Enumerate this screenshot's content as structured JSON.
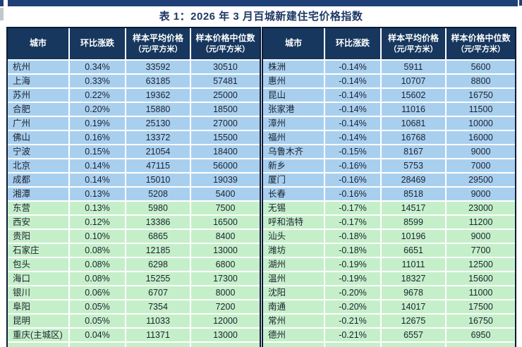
{
  "title": "表 1：2026 年 3 月百城新建住宅价格指数",
  "colors": {
    "accent_bar": "#1F4077",
    "title_color": "#1F3864",
    "header_bg": "#17375E",
    "blue_row": "#A9CFEF",
    "green_row": "#C5EFC9"
  },
  "columns": [
    {
      "key": "city",
      "label": "城市",
      "sub": ""
    },
    {
      "key": "change",
      "label": "环比涨跌",
      "sub": ""
    },
    {
      "key": "avg",
      "label": "样本平均价格",
      "sub": "（元/平方米）"
    },
    {
      "key": "median",
      "label": "样本价格中位数",
      "sub": "（元/平方米）"
    }
  ],
  "green_start_index": 10,
  "tables": {
    "left": {
      "rows": [
        {
          "city": "杭州",
          "change": "0.34%",
          "avg": "33592",
          "median": "30510"
        },
        {
          "city": "上海",
          "change": "0.33%",
          "avg": "63185",
          "median": "57481"
        },
        {
          "city": "苏州",
          "change": "0.22%",
          "avg": "19362",
          "median": "25000"
        },
        {
          "city": "合肥",
          "change": "0.20%",
          "avg": "15880",
          "median": "18500"
        },
        {
          "city": "广州",
          "change": "0.19%",
          "avg": "25130",
          "median": "27000"
        },
        {
          "city": "佛山",
          "change": "0.16%",
          "avg": "13372",
          "median": "15500"
        },
        {
          "city": "宁波",
          "change": "0.15%",
          "avg": "21054",
          "median": "18400"
        },
        {
          "city": "北京",
          "change": "0.14%",
          "avg": "47115",
          "median": "56000"
        },
        {
          "city": "成都",
          "change": "0.14%",
          "avg": "15010",
          "median": "19039"
        },
        {
          "city": "湘潭",
          "change": "0.13%",
          "avg": "5208",
          "median": "5400"
        },
        {
          "city": "东营",
          "change": "0.13%",
          "avg": "5980",
          "median": "7500"
        },
        {
          "city": "西安",
          "change": "0.12%",
          "avg": "13386",
          "median": "16500"
        },
        {
          "city": "贵阳",
          "change": "0.10%",
          "avg": "6865",
          "median": "8400"
        },
        {
          "city": "石家庄",
          "change": "0.08%",
          "avg": "12185",
          "median": "13000"
        },
        {
          "city": "包头",
          "change": "0.08%",
          "avg": "6298",
          "median": "6800"
        },
        {
          "city": "海口",
          "change": "0.08%",
          "avg": "15255",
          "median": "17300"
        },
        {
          "city": "银川",
          "change": "0.06%",
          "avg": "6707",
          "median": "8000"
        },
        {
          "city": "阜阳",
          "change": "0.05%",
          "avg": "7354",
          "median": "7200"
        },
        {
          "city": "昆明",
          "change": "0.05%",
          "avg": "11033",
          "median": "12000"
        },
        {
          "city": "重庆(主城区)",
          "change": "0.04%",
          "avg": "11371",
          "median": "13000"
        }
      ]
    },
    "right": {
      "rows": [
        {
          "city": "株洲",
          "change": "-0.14%",
          "avg": "5911",
          "median": "5600"
        },
        {
          "city": "惠州",
          "change": "-0.14%",
          "avg": "10707",
          "median": "8800"
        },
        {
          "city": "昆山",
          "change": "-0.14%",
          "avg": "15602",
          "median": "16750"
        },
        {
          "city": "张家港",
          "change": "-0.14%",
          "avg": "11016",
          "median": "11500"
        },
        {
          "city": "漳州",
          "change": "-0.14%",
          "avg": "10681",
          "median": "10000"
        },
        {
          "city": "福州",
          "change": "-0.14%",
          "avg": "16768",
          "median": "16000"
        },
        {
          "city": "乌鲁木齐",
          "change": "-0.15%",
          "avg": "8167",
          "median": "9000"
        },
        {
          "city": "新乡",
          "change": "-0.16%",
          "avg": "5753",
          "median": "7000"
        },
        {
          "city": "厦门",
          "change": "-0.16%",
          "avg": "28469",
          "median": "29500"
        },
        {
          "city": "长春",
          "change": "-0.16%",
          "avg": "8518",
          "median": "9000"
        },
        {
          "city": "无锡",
          "change": "-0.17%",
          "avg": "14517",
          "median": "23000"
        },
        {
          "city": "呼和浩特",
          "change": "-0.17%",
          "avg": "8599",
          "median": "11200"
        },
        {
          "city": "汕头",
          "change": "-0.18%",
          "avg": "10196",
          "median": "9000"
        },
        {
          "city": "潍坊",
          "change": "-0.18%",
          "avg": "6651",
          "median": "7700"
        },
        {
          "city": "湖州",
          "change": "-0.19%",
          "avg": "11011",
          "median": "12500"
        },
        {
          "city": "温州",
          "change": "-0.19%",
          "avg": "18327",
          "median": "15600"
        },
        {
          "city": "沈阳",
          "change": "-0.20%",
          "avg": "9678",
          "median": "11000"
        },
        {
          "city": "南通",
          "change": "-0.20%",
          "avg": "14017",
          "median": "17500"
        },
        {
          "city": "常州",
          "change": "-0.21%",
          "avg": "12675",
          "median": "16750"
        },
        {
          "city": "德州",
          "change": "-0.21%",
          "avg": "6557",
          "median": "6950"
        }
      ]
    }
  }
}
